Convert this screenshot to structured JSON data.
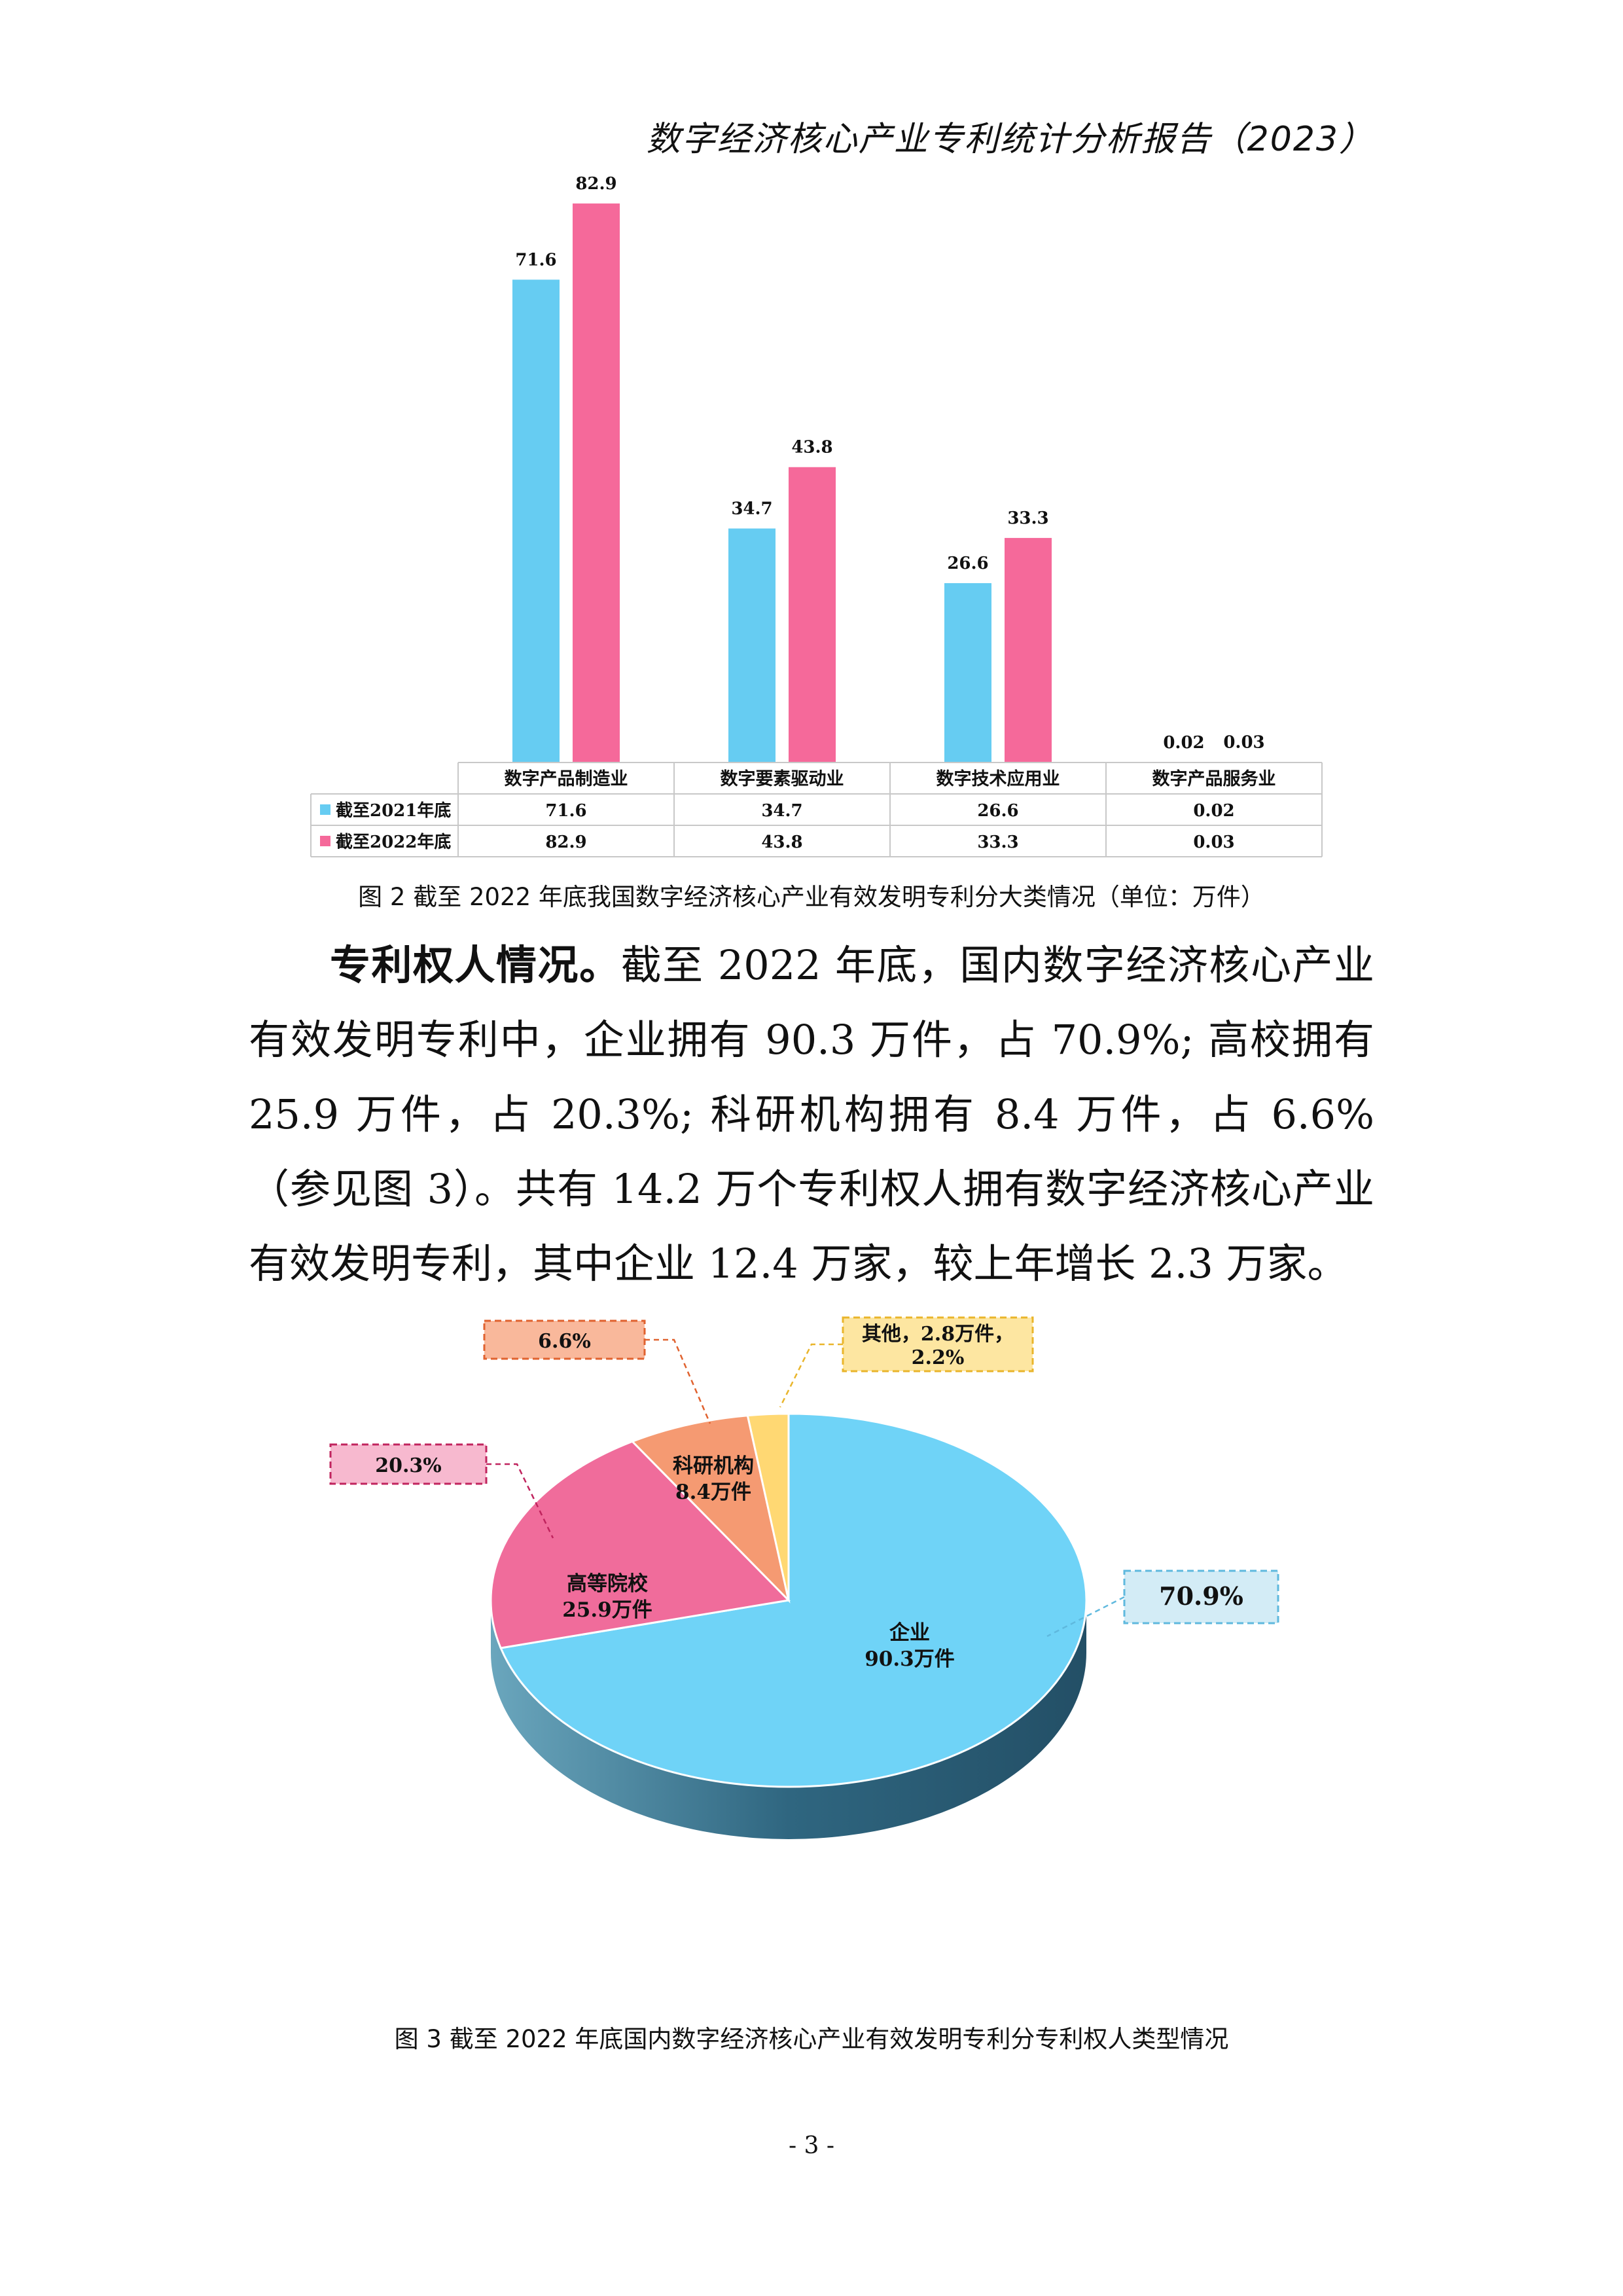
{
  "header": {
    "title": "数字经济核心产业专利统计分析报告（2023）"
  },
  "figure2": {
    "caption": "图 2  截至 2022 年底我国数字经济核心产业有效发明专利分大类情况（单位：万件）",
    "chart_data": {
      "type": "bar",
      "categories": [
        "数字产品制造业",
        "数字要素驱动业",
        "数字技术应用业",
        "数字产品服务业"
      ],
      "series": [
        {
          "name": "截至2021年底",
          "values": [
            71.6,
            34.7,
            26.6,
            0.02
          ],
          "labels": [
            "71.6",
            "34.7",
            "26.6",
            "0.02"
          ]
        },
        {
          "name": "截至2022年底",
          "values": [
            82.9,
            43.8,
            33.3,
            0.03
          ],
          "labels": [
            "82.9",
            "43.8",
            "33.3",
            "0.03"
          ]
        }
      ],
      "colors": [
        "#66ccf2",
        "#f5699a"
      ],
      "ylim": [
        0,
        90
      ],
      "grid": false,
      "legend": "data-table"
    }
  },
  "body": {
    "lead": "专利权人情况。",
    "text": "截至 2022 年底，国内数字经济核心产业有效发明专利中，企业拥有 90.3 万件，占 70.9%; 高校拥有 25.9 万件，占 20.3%; 科研机构拥有 8.4 万件，占 6.6%（参见图 3）。共有 14.2 万个专利权人拥有数字经济核心产业有效发明专利，其中企业 12.4 万家，较上年增长 2.3 万家。"
  },
  "figure3": {
    "caption": "图 3  截至 2022 年底国内数字经济核心产业有效发明专利分专利权人类型情况",
    "chart_data": {
      "type": "pie",
      "slices": [
        {
          "name": "企业",
          "value": 90.3,
          "inner_label": [
            "企业",
            "90.3万件"
          ],
          "callout": [
            "70.9%"
          ],
          "percent": 70.9,
          "color": "#6fd3f7",
          "dark": "#2e5d78",
          "callout_bg": "#d3ecf6",
          "callout_border": "#5fb9de"
        },
        {
          "name": "高等院校",
          "value": 25.9,
          "inner_label": [
            "高等院校",
            "25.9万件"
          ],
          "callout": [
            "20.3%"
          ],
          "percent": 20.3,
          "color": "#f06c9b",
          "dark": "#8f2f56",
          "callout_bg": "#f7b9cf",
          "callout_border": "#c0245e"
        },
        {
          "name": "科研机构",
          "value": 8.4,
          "inner_label": [
            "科研机构",
            "8.4万件"
          ],
          "callout": [
            "6.6%"
          ],
          "percent": 6.6,
          "color": "#f59a72",
          "dark": "#8a4a2e",
          "callout_bg": "#f9b89b",
          "callout_border": "#e0622f"
        },
        {
          "name": "其他",
          "value": 2.8,
          "inner_label": [],
          "callout": [
            "其他，2.8万件，",
            "2.2%"
          ],
          "percent": 2.2,
          "color": "#ffd873",
          "dark": "#8a7020",
          "callout_bg": "#fde6a1",
          "callout_border": "#e9b52b"
        }
      ]
    }
  },
  "page_number": "- 3 -"
}
